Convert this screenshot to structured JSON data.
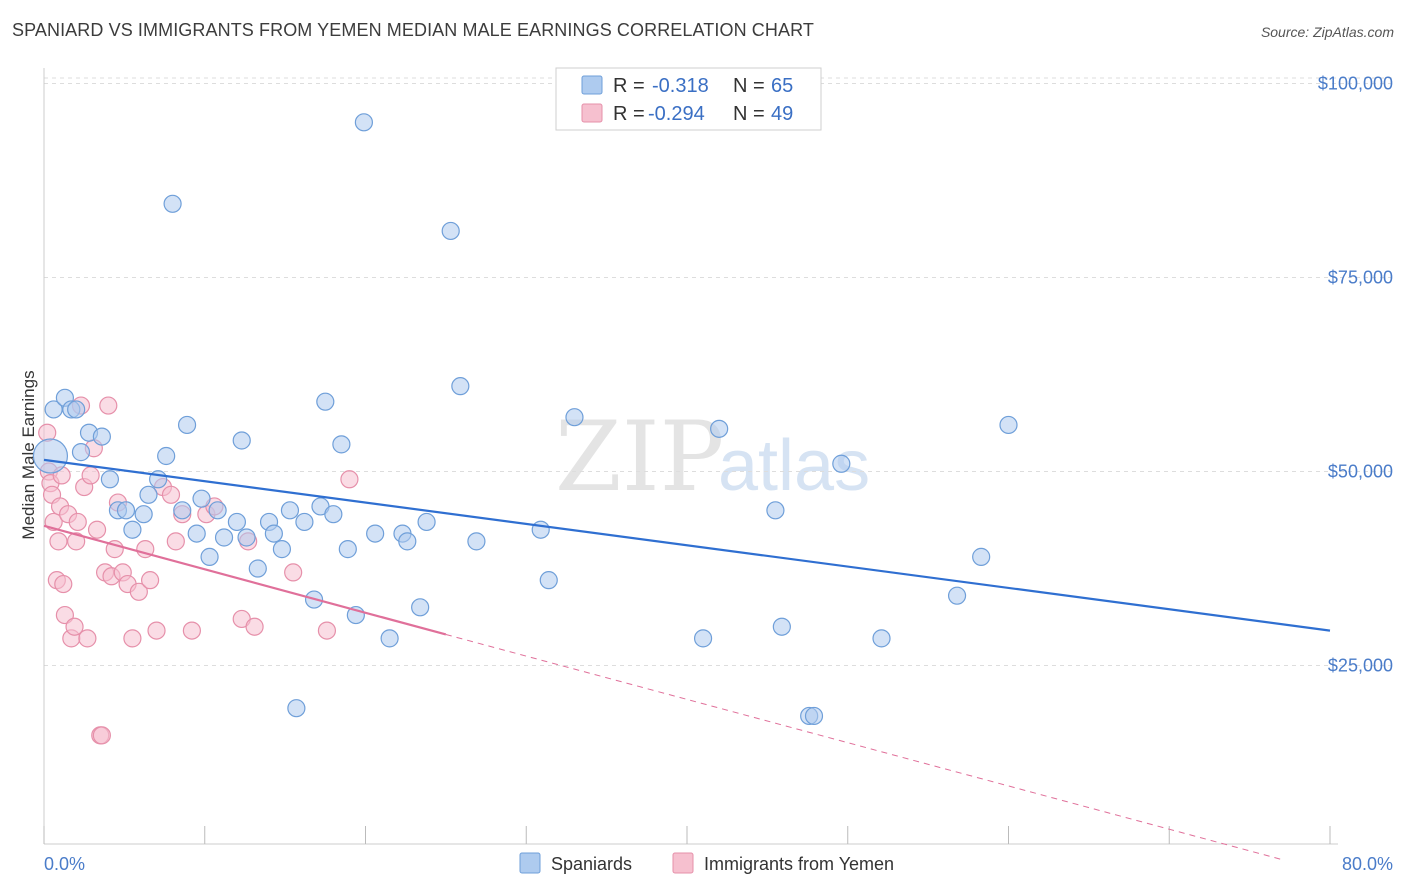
{
  "title": "SPANIARD VS IMMIGRANTS FROM YEMEN MEDIAN MALE EARNINGS CORRELATION CHART",
  "source": "Source: ZipAtlas.com",
  "watermark": {
    "part1": "ZIP",
    "part2": "atlas"
  },
  "legend": {
    "rows": [
      {
        "r_label": "R =",
        "r_value": "-0.318",
        "n_label": "N =",
        "n_value": "65"
      },
      {
        "r_label": "R =",
        "r_value": "-0.294",
        "n_label": "N =",
        "n_value": "49"
      }
    ]
  },
  "bottom_legend": {
    "series1": "Spaniards",
    "series2": "Immigrants from Yemen"
  },
  "colors": {
    "blue_fill": "#aecbef",
    "blue_stroke": "#6f9fd9",
    "blue_line": "#2f6fd1",
    "pink_fill": "#f6c0cf",
    "pink_stroke": "#e690aa",
    "pink_line": "#e0709a",
    "grid": "#dddddd",
    "axis_text": "#4a7cc9"
  },
  "chart_data": {
    "type": "scatter",
    "title": "SPANIARD VS IMMIGRANTS FROM YEMEN MEDIAN MALE EARNINGS CORRELATION CHART",
    "xlabel": "",
    "ylabel": "Median Male Earnings",
    "xlim": [
      0,
      80
    ],
    "ylim": [
      2000,
      102000
    ],
    "x_tick_labels": [
      "0.0%",
      "80.0%"
    ],
    "y_ticks": [
      25000,
      50000,
      75000,
      100000
    ],
    "y_tick_labels": [
      "$25,000",
      "$50,000",
      "$75,000",
      "$100,000"
    ],
    "grid": true,
    "series": [
      {
        "name": "Spaniards",
        "r": -0.318,
        "n": 65,
        "trend": {
          "x0": 0,
          "y0": 51500,
          "x1": 80,
          "y1": 29500
        },
        "points": [
          [
            0.4,
            52000
          ],
          [
            0.6,
            58000
          ],
          [
            1.3,
            59500
          ],
          [
            1.7,
            58000
          ],
          [
            2.0,
            58000
          ],
          [
            2.3,
            52500
          ],
          [
            2.8,
            55000
          ],
          [
            3.6,
            54500
          ],
          [
            4.1,
            49000
          ],
          [
            4.6,
            45000
          ],
          [
            5.1,
            45000
          ],
          [
            5.5,
            42500
          ],
          [
            6.2,
            44500
          ],
          [
            6.5,
            47000
          ],
          [
            7.1,
            49000
          ],
          [
            7.6,
            52000
          ],
          [
            8.0,
            84500
          ],
          [
            8.6,
            45000
          ],
          [
            8.9,
            56000
          ],
          [
            9.5,
            42000
          ],
          [
            9.8,
            46500
          ],
          [
            10.3,
            39000
          ],
          [
            10.8,
            45000
          ],
          [
            11.2,
            41500
          ],
          [
            12.0,
            43500
          ],
          [
            12.3,
            54000
          ],
          [
            12.6,
            41500
          ],
          [
            13.3,
            37500
          ],
          [
            14.0,
            43500
          ],
          [
            14.3,
            42000
          ],
          [
            14.8,
            40000
          ],
          [
            15.3,
            45000
          ],
          [
            15.7,
            19500
          ],
          [
            16.2,
            43500
          ],
          [
            16.8,
            33500
          ],
          [
            17.2,
            45500
          ],
          [
            17.5,
            59000
          ],
          [
            18.0,
            44500
          ],
          [
            18.5,
            53500
          ],
          [
            18.9,
            40000
          ],
          [
            19.4,
            31500
          ],
          [
            19.9,
            95000
          ],
          [
            20.6,
            42000
          ],
          [
            21.5,
            28500
          ],
          [
            22.3,
            42000
          ],
          [
            22.6,
            41000
          ],
          [
            23.4,
            32500
          ],
          [
            23.8,
            43500
          ],
          [
            25.3,
            81000
          ],
          [
            25.9,
            61000
          ],
          [
            26.9,
            41000
          ],
          [
            30.9,
            42500
          ],
          [
            31.4,
            36000
          ],
          [
            33.0,
            57000
          ],
          [
            41.0,
            28500
          ],
          [
            42.0,
            55500
          ],
          [
            45.5,
            45000
          ],
          [
            45.9,
            30000
          ],
          [
            47.6,
            18500
          ],
          [
            47.9,
            18500
          ],
          [
            49.6,
            51000
          ],
          [
            52.1,
            28500
          ],
          [
            56.8,
            34000
          ],
          [
            58.3,
            39000
          ],
          [
            60.0,
            56000
          ]
        ]
      },
      {
        "name": "Immigrants from Yemen",
        "r": -0.294,
        "n": 49,
        "trend": {
          "x0": 0,
          "y0": 43000,
          "x1": 25,
          "y1": 29000
        },
        "trend_ext": {
          "x0": 25,
          "y0": 29000,
          "x1": 77,
          "y1": 0
        },
        "points": [
          [
            0.2,
            55000
          ],
          [
            0.3,
            50000
          ],
          [
            0.4,
            48500
          ],
          [
            0.5,
            47000
          ],
          [
            0.6,
            43500
          ],
          [
            0.8,
            36000
          ],
          [
            0.9,
            41000
          ],
          [
            1.0,
            45500
          ],
          [
            1.1,
            49500
          ],
          [
            1.2,
            35500
          ],
          [
            1.3,
            31500
          ],
          [
            1.5,
            44500
          ],
          [
            1.7,
            28500
          ],
          [
            1.9,
            30000
          ],
          [
            2.0,
            41000
          ],
          [
            2.1,
            43500
          ],
          [
            2.3,
            58500
          ],
          [
            2.5,
            48000
          ],
          [
            2.7,
            28500
          ],
          [
            2.9,
            49500
          ],
          [
            3.1,
            53000
          ],
          [
            3.3,
            42500
          ],
          [
            3.5,
            16000
          ],
          [
            3.6,
            16000
          ],
          [
            3.8,
            37000
          ],
          [
            4.0,
            58500
          ],
          [
            4.2,
            36500
          ],
          [
            4.4,
            40000
          ],
          [
            4.6,
            46000
          ],
          [
            4.9,
            37000
          ],
          [
            5.2,
            35500
          ],
          [
            5.5,
            28500
          ],
          [
            5.9,
            34500
          ],
          [
            6.3,
            40000
          ],
          [
            6.6,
            36000
          ],
          [
            7.0,
            29500
          ],
          [
            7.4,
            48000
          ],
          [
            7.9,
            47000
          ],
          [
            8.2,
            41000
          ],
          [
            8.6,
            44500
          ],
          [
            9.2,
            29500
          ],
          [
            10.1,
            44500
          ],
          [
            10.6,
            45500
          ],
          [
            12.3,
            31000
          ],
          [
            12.7,
            41000
          ],
          [
            13.1,
            30000
          ],
          [
            15.5,
            37000
          ],
          [
            17.6,
            29500
          ],
          [
            19.0,
            49000
          ]
        ]
      }
    ]
  }
}
